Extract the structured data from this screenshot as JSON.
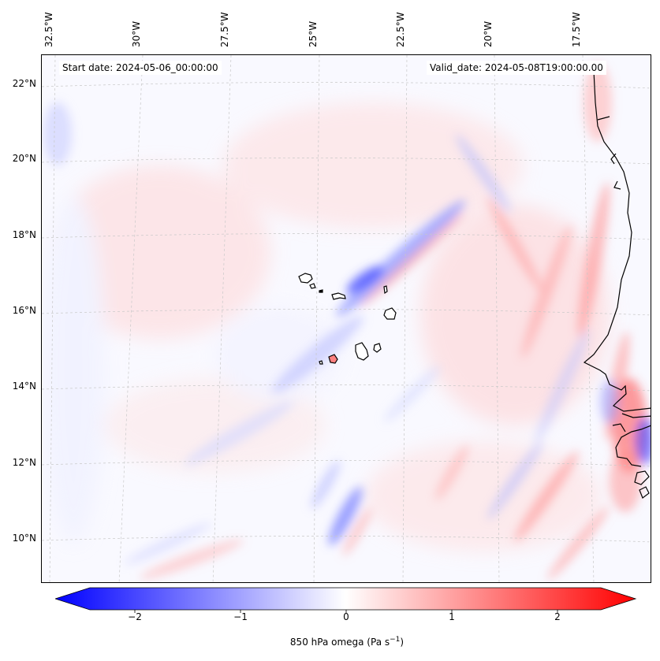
{
  "header": {
    "start_date": "Start date: 2024-05-06_00:00:00",
    "valid_date": "Valid_date: 2024-05-08T19:00:00.00"
  },
  "map": {
    "lon_ticks": [
      "32.5°W",
      "30°W",
      "27.5°W",
      "25°W",
      "22.5°W",
      "20°W",
      "17.5°W"
    ],
    "lat_ticks": [
      "22°N",
      "20°N",
      "18°N",
      "16°N",
      "14°N",
      "12°N",
      "10°N"
    ],
    "field": "850 hPa omega",
    "colors": {
      "negative": "#0000ff",
      "zero": "#ffffff",
      "positive": "#ff0000",
      "coast": "#000000"
    }
  },
  "colorbar": {
    "label": "850 hPa omega (Pa s",
    "label_sup": "−1",
    "label_end": ")",
    "ticks": [
      "−2",
      "−1",
      "0",
      "1",
      "2"
    ],
    "range": [
      -2.6,
      2.6
    ]
  }
}
